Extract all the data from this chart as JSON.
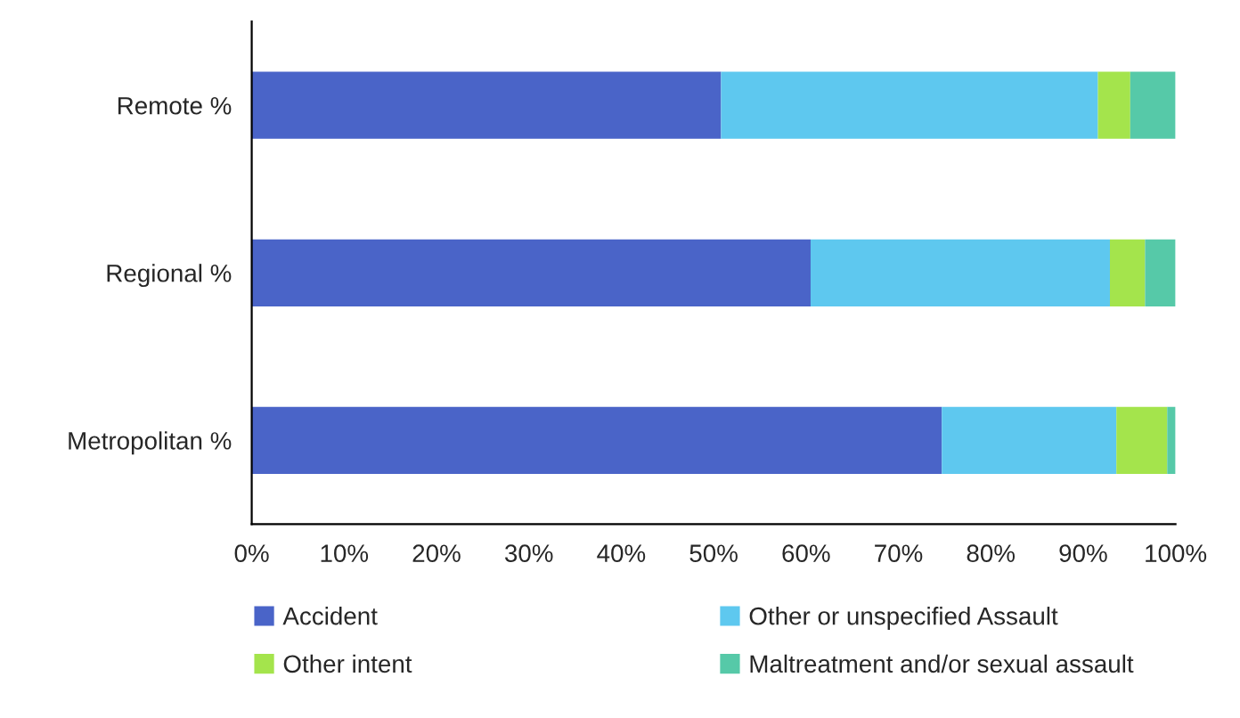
{
  "chart_data": {
    "type": "bar",
    "orientation": "horizontal",
    "stacked": true,
    "categories": [
      "Remote %",
      "Regional %",
      "Metropolitan %"
    ],
    "series": [
      {
        "name": "Accident",
        "color": "#4a64c8",
        "values": [
          50.8,
          60.5,
          74.7
        ]
      },
      {
        "name": "Other or unspecified Assault",
        "color": "#5ec8ef",
        "values": [
          40.8,
          32.4,
          18.9
        ]
      },
      {
        "name": "Other intent",
        "color": "#a4e44c",
        "values": [
          3.5,
          3.8,
          5.5
        ]
      },
      {
        "name": "Maltreatment and/or sexual assault",
        "color": "#56c9a8",
        "values": [
          4.9,
          3.3,
          0.9
        ]
      }
    ],
    "xlim": [
      0,
      100
    ],
    "xticks": [
      {
        "value": 0,
        "label": "0%"
      },
      {
        "value": 10,
        "label": "10%"
      },
      {
        "value": 20,
        "label": "20%"
      },
      {
        "value": 30,
        "label": "30%"
      },
      {
        "value": 40,
        "label": "40%"
      },
      {
        "value": 50,
        "label": "50%"
      },
      {
        "value": 60,
        "label": "60%"
      },
      {
        "value": 70,
        "label": "70%"
      },
      {
        "value": 80,
        "label": "80%"
      },
      {
        "value": 90,
        "label": "90%"
      },
      {
        "value": 100,
        "label": "100%"
      }
    ],
    "grid": false,
    "legend": "bottom"
  }
}
